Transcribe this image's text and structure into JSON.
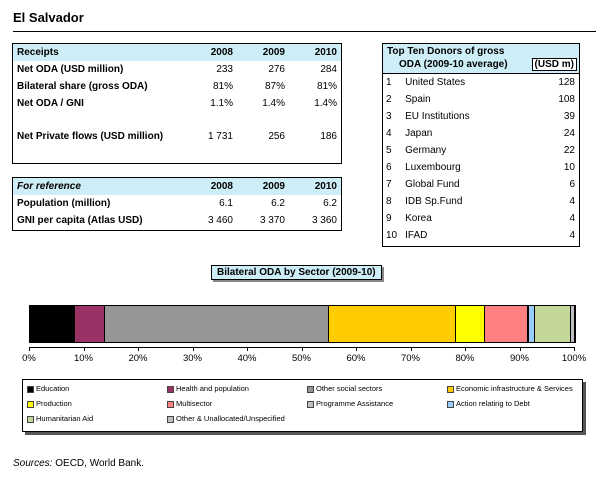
{
  "country": "El Salvador",
  "receipts": {
    "header": [
      "Receipts",
      "2008",
      "2009",
      "2010"
    ],
    "rows": [
      {
        "label": "Net ODA (USD million)",
        "v": [
          "233",
          "276",
          "284"
        ]
      },
      {
        "label": "Bilateral share (gross ODA)",
        "v": [
          "81%",
          "87%",
          "81%"
        ]
      },
      {
        "label": "Net ODA / GNI",
        "v": [
          "1.1%",
          "1.4%",
          "1.4%"
        ]
      },
      {
        "label": "",
        "v": [
          "",
          "",
          ""
        ]
      },
      {
        "label": "Net Private flows (USD million)",
        "v": [
          "1 731",
          "256",
          "186"
        ]
      }
    ]
  },
  "reference": {
    "header": [
      "For reference",
      "2008",
      "2009",
      "2010"
    ],
    "rows": [
      {
        "label": "Population (million)",
        "v": [
          "6.1",
          "6.2",
          "6.2"
        ]
      },
      {
        "label": "GNI per capita (Atlas USD)",
        "v": [
          "3 460",
          "3 370",
          "3 360"
        ]
      }
    ]
  },
  "donors": {
    "title_line1": "Top Ten Donors of gross",
    "title_line2": "ODA (2009-10 average)",
    "unit": "(USD m)",
    "rows": [
      {
        "rank": "1",
        "name": "United States",
        "value": "128"
      },
      {
        "rank": "2",
        "name": "Spain",
        "value": "108"
      },
      {
        "rank": "3",
        "name": "EU Institutions",
        "value": "39"
      },
      {
        "rank": "4",
        "name": "Japan",
        "value": "24"
      },
      {
        "rank": "5",
        "name": "Germany",
        "value": "22"
      },
      {
        "rank": "6",
        "name": "Luxembourg",
        "value": "10"
      },
      {
        "rank": "7",
        "name": "Global Fund",
        "value": "6"
      },
      {
        "rank": "8",
        "name": "IDB Sp.Fund",
        "value": "4"
      },
      {
        "rank": "9",
        "name": "Korea",
        "value": "4"
      },
      {
        "rank": "10",
        "name": "IFAD",
        "value": "4"
      }
    ]
  },
  "chart_data": {
    "type": "bar",
    "title": "Bilateral ODA by Sector (2009-10)",
    "orientation": "horizontal-stacked",
    "xlim": [
      0,
      100
    ],
    "xticks": [
      "0%",
      "10%",
      "20%",
      "30%",
      "40%",
      "50%",
      "60%",
      "70%",
      "80%",
      "90%",
      "100%"
    ],
    "series": [
      {
        "name": "Education",
        "value": 8.3,
        "color": "#000000"
      },
      {
        "name": "Health and population",
        "value": 5.5,
        "color": "#993366"
      },
      {
        "name": "Other social sectors",
        "value": 41.0,
        "color": "#969696"
      },
      {
        "name": "Economic infrastructure & Services",
        "value": 23.3,
        "color": "#ffcc00"
      },
      {
        "name": "Production",
        "value": 5.4,
        "color": "#ffff00"
      },
      {
        "name": "Multisector",
        "value": 7.8,
        "color": "#ff8080"
      },
      {
        "name": "Programme Assistance",
        "value": 0.3,
        "color": "#c0c0c0"
      },
      {
        "name": "Action relating to Debt",
        "value": 1.1,
        "color": "#99ccff"
      },
      {
        "name": "Humanitarian Aid",
        "value": 6.6,
        "color": "#c4d79b"
      },
      {
        "name": "Other & Unallocated/Unspecified",
        "value": 0.7,
        "color": "#c0c0c0"
      }
    ],
    "legend": "below"
  },
  "sources": {
    "label": "Sources:",
    "text": "OECD, World Bank."
  }
}
